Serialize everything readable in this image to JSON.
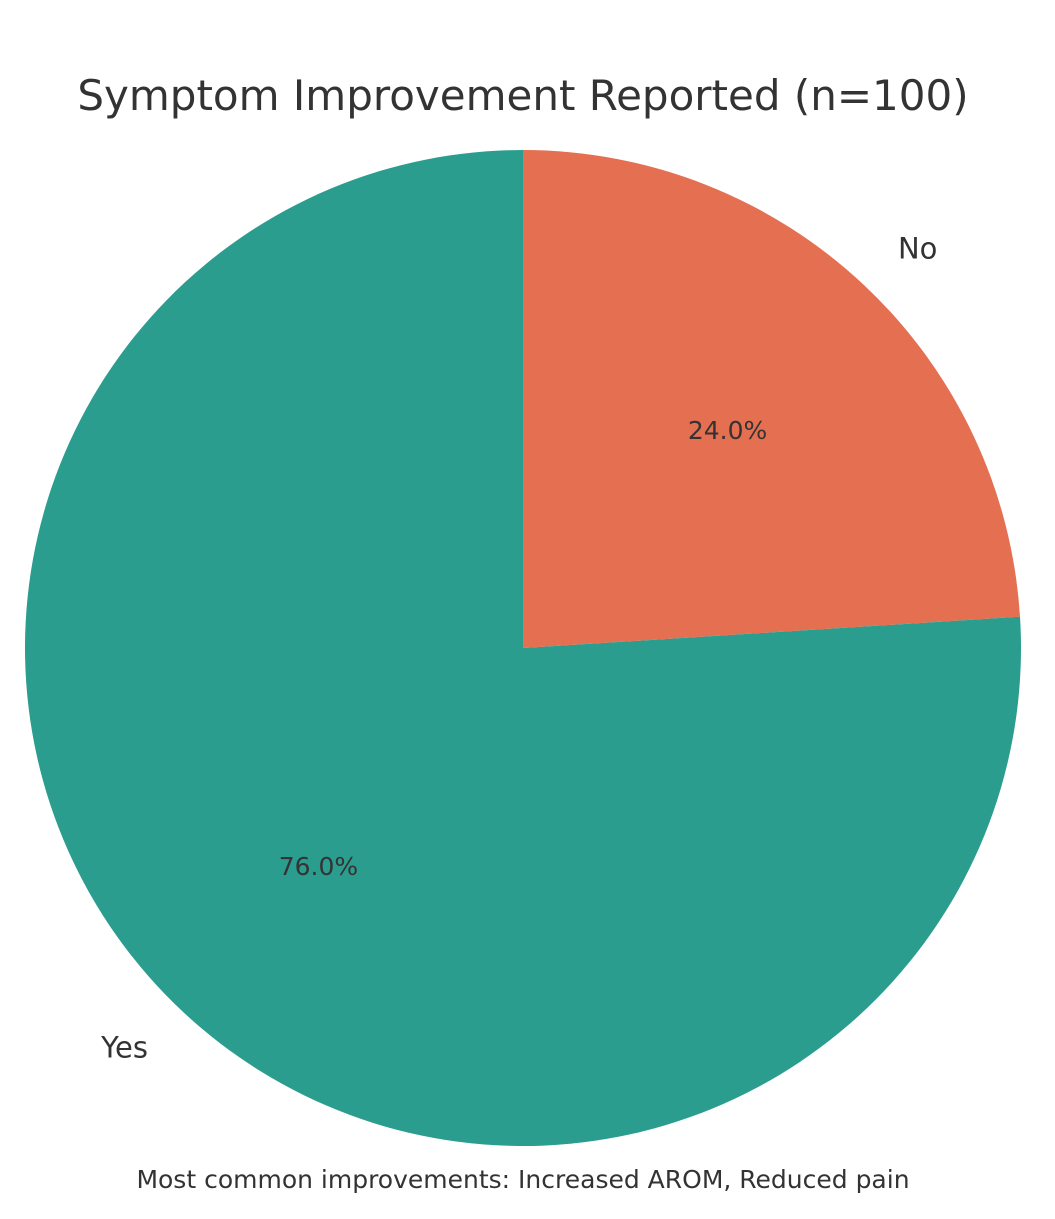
{
  "chart_data": {
    "type": "pie",
    "title": "Symptom Improvement Reported (n=100)",
    "categories": [
      "No",
      "Yes"
    ],
    "values": [
      24,
      76
    ],
    "percent_labels": [
      "24.0%",
      "76.0%"
    ],
    "colors": [
      "#e46f51",
      "#2a9d8f"
    ],
    "start_angle": "12 o'clock",
    "direction": "clockwise",
    "caption": "Most common improvements: Increased AROM, Reduced pain"
  }
}
